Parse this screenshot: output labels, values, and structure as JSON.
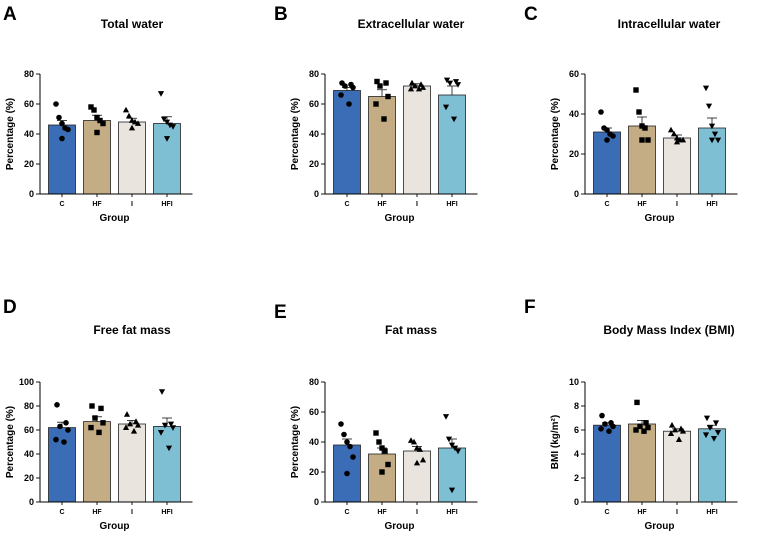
{
  "colors": {
    "C": "#3a6db5",
    "HF": "#c4ad84",
    "I": "#e9e4de",
    "HFI": "#7fbfd4",
    "points": "#000000",
    "axis": "#000000"
  },
  "chart_data": [
    {
      "panel": "A",
      "type": "bar",
      "title": "Total water",
      "xlabel": "Group",
      "ylabel": "Percentage (%)",
      "ylim": [
        0,
        80
      ],
      "yticks": [
        0,
        20,
        40,
        60,
        80
      ],
      "categories": [
        "C",
        "HF",
        "I",
        "HFI"
      ],
      "values": [
        46,
        49,
        48,
        47
      ],
      "errors": [
        3,
        3.5,
        2.5,
        4.5
      ],
      "points": [
        [
          60,
          51,
          47,
          44,
          43,
          37
        ],
        [
          58,
          56,
          51,
          49,
          47,
          41
        ],
        [
          56,
          52,
          49,
          48,
          47,
          44
        ],
        [
          67,
          50,
          48,
          46,
          45,
          37
        ]
      ]
    },
    {
      "panel": "B",
      "type": "bar",
      "title": "Extracellular water",
      "xlabel": "Group",
      "ylabel": "Percentage (%)",
      "ylim": [
        0,
        80
      ],
      "yticks": [
        0,
        20,
        40,
        60,
        80
      ],
      "categories": [
        "C",
        "HF",
        "I",
        "HFI"
      ],
      "values": [
        69,
        65,
        72,
        66
      ],
      "errors": [
        2,
        4.5,
        1.5,
        6
      ],
      "points": [
        [
          74,
          73,
          72,
          71,
          66,
          60
        ],
        [
          75,
          74,
          72,
          65,
          60,
          50
        ],
        [
          74,
          73,
          72,
          71,
          70,
          70
        ],
        [
          76,
          75,
          74,
          73,
          58,
          50
        ]
      ]
    },
    {
      "panel": "C",
      "type": "bar",
      "title": "Intracellular water",
      "xlabel": "Group",
      "ylabel": "Percentage (%)",
      "ylim": [
        0,
        60
      ],
      "yticks": [
        0,
        20,
        40,
        60
      ],
      "categories": [
        "C",
        "HF",
        "I",
        "HFI"
      ],
      "values": [
        31,
        34,
        28,
        33
      ],
      "errors": [
        2,
        4.5,
        1.5,
        5
      ],
      "points": [
        [
          41,
          33,
          32,
          30,
          29,
          27
        ],
        [
          52,
          41,
          34,
          33,
          27,
          27
        ],
        [
          32,
          30,
          28,
          27,
          27,
          26
        ],
        [
          53,
          44,
          34,
          30,
          27,
          27
        ]
      ]
    },
    {
      "panel": "D",
      "type": "bar",
      "title": "Free fat mass",
      "xlabel": "Group",
      "ylabel": "Percentage (%)",
      "ylim": [
        0,
        100
      ],
      "yticks": [
        0,
        20,
        40,
        60,
        80,
        100
      ],
      "categories": [
        "C",
        "HF",
        "I",
        "HFI"
      ],
      "values": [
        62,
        67,
        65,
        63
      ],
      "errors": [
        4.5,
        4,
        3,
        7
      ],
      "points": [
        [
          81,
          66,
          63,
          60,
          52,
          50
        ],
        [
          80,
          78,
          70,
          66,
          62,
          58
        ],
        [
          73,
          67,
          65,
          64,
          62,
          59
        ],
        [
          92,
          65,
          64,
          62,
          58,
          45
        ]
      ]
    },
    {
      "panel": "E",
      "type": "bar",
      "title": "Fat mass",
      "xlabel": "Group",
      "ylabel": "Percentage (%)",
      "ylim": [
        0,
        80
      ],
      "yticks": [
        0,
        20,
        40,
        60,
        80
      ],
      "categories": [
        "C",
        "HF",
        "I",
        "HFI"
      ],
      "values": [
        38,
        32,
        34,
        36
      ],
      "errors": [
        4,
        4,
        3,
        6
      ],
      "points": [
        [
          52,
          45,
          40,
          37,
          30,
          19
        ],
        [
          46,
          40,
          36,
          34,
          25,
          20
        ],
        [
          41,
          40,
          36,
          35,
          28,
          26
        ],
        [
          57,
          42,
          38,
          36,
          34,
          8
        ]
      ]
    },
    {
      "panel": "F",
      "type": "bar",
      "title": "Body Mass Index (BMI)",
      "xlabel": "Group",
      "ylabel": "BMI (kg/m²)",
      "ylim": [
        0,
        10
      ],
      "yticks": [
        0,
        2,
        4,
        6,
        8,
        10
      ],
      "categories": [
        "C",
        "HF",
        "I",
        "HFI"
      ],
      "values": [
        6.4,
        6.5,
        5.9,
        6.1
      ],
      "errors": [
        0.2,
        0.3,
        0.2,
        0.3
      ],
      "points": [
        [
          7.2,
          6.6,
          6.5,
          6.3,
          6.1,
          5.9
        ],
        [
          8.3,
          6.6,
          6.3,
          6.2,
          6.0,
          5.9
        ],
        [
          6.4,
          6.1,
          6.0,
          5.9,
          5.7,
          5.2
        ],
        [
          7.0,
          6.6,
          6.2,
          5.8,
          5.6,
          5.3
        ]
      ]
    }
  ]
}
